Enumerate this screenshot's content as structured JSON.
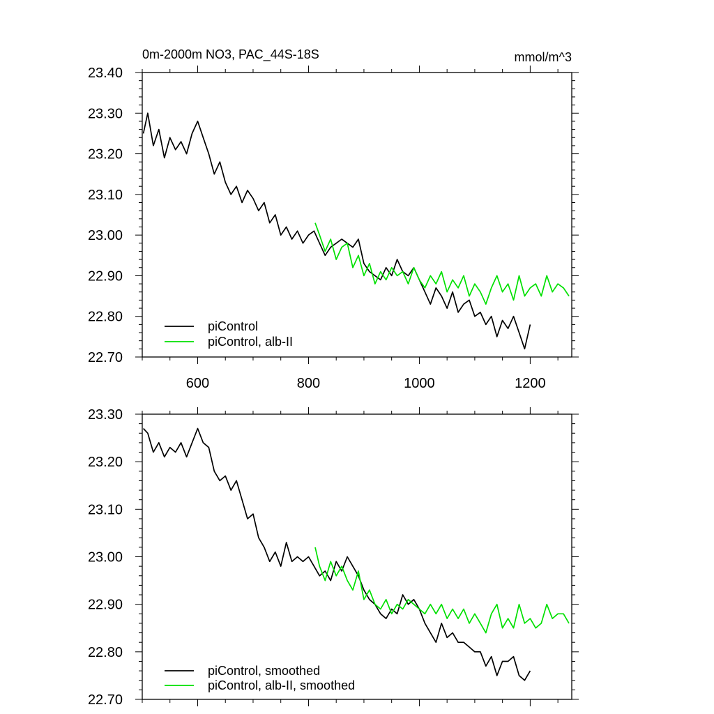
{
  "header": {
    "title": "0m-2000m NO3, PAC_44S-18S",
    "units": "mmol/m^3"
  },
  "colors": {
    "piControl": "#000000",
    "alb_II": "#00e000",
    "axis": "#000000"
  },
  "chart_data": [
    {
      "type": "line",
      "title": "0m-2000m NO3, PAC_44S-18S",
      "units_label": "mmol/m^3",
      "xlim": [
        500,
        1275
      ],
      "ylim": [
        22.7,
        23.4
      ],
      "x_tick_values": [
        600,
        800,
        1000,
        1200
      ],
      "x_tick_labels": [
        "600",
        "800",
        "1000",
        "1200"
      ],
      "y_tick_values": [
        22.7,
        22.8,
        22.9,
        23.0,
        23.1,
        23.2,
        23.3,
        23.4
      ],
      "y_tick_labels": [
        "22.70",
        "22.80",
        "22.90",
        "23.00",
        "23.10",
        "23.20",
        "23.30",
        "23.40"
      ],
      "grid": false,
      "legend_position": "bottom-left",
      "series": [
        {
          "name": "piControl",
          "color": "#000000",
          "x": [
            502,
            510,
            520,
            530,
            540,
            550,
            560,
            570,
            580,
            590,
            600,
            610,
            620,
            630,
            640,
            650,
            660,
            670,
            680,
            690,
            700,
            710,
            720,
            730,
            740,
            750,
            760,
            770,
            780,
            790,
            800,
            810,
            820,
            830,
            840,
            850,
            860,
            870,
            880,
            890,
            900,
            910,
            920,
            930,
            940,
            950,
            960,
            970,
            980,
            990,
            1000,
            1010,
            1020,
            1030,
            1040,
            1050,
            1060,
            1070,
            1080,
            1090,
            1100,
            1110,
            1120,
            1130,
            1140,
            1150,
            1160,
            1170,
            1180,
            1190,
            1200
          ],
          "y": [
            23.25,
            23.3,
            23.22,
            23.26,
            23.19,
            23.24,
            23.21,
            23.23,
            23.2,
            23.25,
            23.28,
            23.24,
            23.2,
            23.15,
            23.18,
            23.13,
            23.1,
            23.12,
            23.08,
            23.11,
            23.09,
            23.06,
            23.08,
            23.03,
            23.05,
            23.0,
            23.02,
            22.99,
            23.01,
            22.98,
            23.0,
            23.01,
            22.98,
            22.95,
            22.97,
            22.98,
            22.99,
            22.98,
            22.97,
            22.99,
            22.93,
            22.91,
            22.9,
            22.89,
            22.92,
            22.9,
            22.94,
            22.91,
            22.9,
            22.92,
            22.89,
            22.86,
            22.83,
            22.87,
            22.85,
            22.82,
            22.86,
            22.81,
            22.83,
            22.84,
            22.8,
            22.81,
            22.78,
            22.8,
            22.75,
            22.79,
            22.77,
            22.8,
            22.76,
            22.72,
            22.78
          ]
        },
        {
          "name": "piControl, alb-II",
          "color": "#00e000",
          "x": [
            812,
            820,
            830,
            840,
            850,
            860,
            870,
            880,
            890,
            900,
            910,
            920,
            930,
            940,
            950,
            960,
            970,
            980,
            990,
            1000,
            1010,
            1020,
            1030,
            1040,
            1050,
            1060,
            1070,
            1080,
            1090,
            1100,
            1110,
            1120,
            1130,
            1140,
            1150,
            1160,
            1170,
            1180,
            1190,
            1200,
            1210,
            1220,
            1230,
            1240,
            1250,
            1260,
            1270
          ],
          "y": [
            23.03,
            23.0,
            22.96,
            22.99,
            22.94,
            22.97,
            22.98,
            22.92,
            22.95,
            22.9,
            22.93,
            22.88,
            22.91,
            22.89,
            22.92,
            22.9,
            22.91,
            22.88,
            22.92,
            22.89,
            22.87,
            22.9,
            22.88,
            22.91,
            22.86,
            22.89,
            22.87,
            22.9,
            22.85,
            22.88,
            22.86,
            22.83,
            22.87,
            22.9,
            22.86,
            22.88,
            22.84,
            22.9,
            22.85,
            22.87,
            22.88,
            22.85,
            22.9,
            22.86,
            22.88,
            22.87,
            22.85
          ]
        }
      ]
    },
    {
      "type": "line",
      "xlim": [
        500,
        1275
      ],
      "ylim": [
        22.7,
        23.3
      ],
      "x_tick_values": [
        600,
        800,
        1000,
        1200
      ],
      "y_tick_values": [
        22.7,
        22.8,
        22.9,
        23.0,
        23.1,
        23.2,
        23.3
      ],
      "y_tick_labels": [
        "22.70",
        "22.80",
        "22.90",
        "23.00",
        "23.10",
        "23.20",
        "23.30"
      ],
      "grid": false,
      "legend_position": "bottom-left",
      "series": [
        {
          "name": "piControl, smoothed",
          "color": "#000000",
          "x": [
            502,
            510,
            520,
            530,
            540,
            550,
            560,
            570,
            580,
            590,
            600,
            610,
            620,
            630,
            640,
            650,
            660,
            670,
            680,
            690,
            700,
            710,
            720,
            730,
            740,
            750,
            760,
            770,
            780,
            790,
            800,
            810,
            820,
            830,
            840,
            850,
            860,
            870,
            880,
            890,
            900,
            910,
            920,
            930,
            940,
            950,
            960,
            970,
            980,
            990,
            1000,
            1010,
            1020,
            1030,
            1040,
            1050,
            1060,
            1070,
            1080,
            1090,
            1100,
            1110,
            1120,
            1130,
            1140,
            1150,
            1160,
            1170,
            1180,
            1190,
            1200
          ],
          "y": [
            23.27,
            23.26,
            23.22,
            23.24,
            23.21,
            23.23,
            23.22,
            23.24,
            23.21,
            23.24,
            23.27,
            23.24,
            23.23,
            23.18,
            23.16,
            23.17,
            23.14,
            23.16,
            23.12,
            23.08,
            23.09,
            23.04,
            23.02,
            22.99,
            23.01,
            22.98,
            23.03,
            22.99,
            23.0,
            22.99,
            23.0,
            22.98,
            22.96,
            22.97,
            22.95,
            22.99,
            22.97,
            23.0,
            22.98,
            22.96,
            22.93,
            22.91,
            22.9,
            22.88,
            22.87,
            22.89,
            22.88,
            22.92,
            22.9,
            22.91,
            22.89,
            22.86,
            22.84,
            22.82,
            22.86,
            22.83,
            22.84,
            22.82,
            22.82,
            22.81,
            22.8,
            22.8,
            22.77,
            22.79,
            22.75,
            22.78,
            22.78,
            22.79,
            22.75,
            22.74,
            22.76
          ]
        },
        {
          "name": "piControl, alb-II, smoothed",
          "color": "#00e000",
          "x": [
            812,
            820,
            830,
            840,
            850,
            860,
            870,
            880,
            890,
            900,
            910,
            920,
            930,
            940,
            950,
            960,
            970,
            980,
            990,
            1000,
            1010,
            1020,
            1030,
            1040,
            1050,
            1060,
            1070,
            1080,
            1090,
            1100,
            1110,
            1120,
            1130,
            1140,
            1150,
            1160,
            1170,
            1180,
            1190,
            1200,
            1210,
            1220,
            1230,
            1240,
            1250,
            1260,
            1270
          ],
          "y": [
            23.02,
            22.98,
            22.95,
            22.99,
            22.96,
            22.98,
            22.95,
            22.93,
            22.97,
            22.91,
            22.93,
            22.9,
            22.89,
            22.91,
            22.88,
            22.9,
            22.89,
            22.91,
            22.9,
            22.89,
            22.88,
            22.9,
            22.88,
            22.9,
            22.87,
            22.89,
            22.87,
            22.89,
            22.86,
            22.88,
            22.86,
            22.84,
            22.88,
            22.9,
            22.85,
            22.87,
            22.85,
            22.9,
            22.86,
            22.87,
            22.85,
            22.86,
            22.9,
            22.87,
            22.88,
            22.88,
            22.86
          ]
        }
      ]
    }
  ]
}
